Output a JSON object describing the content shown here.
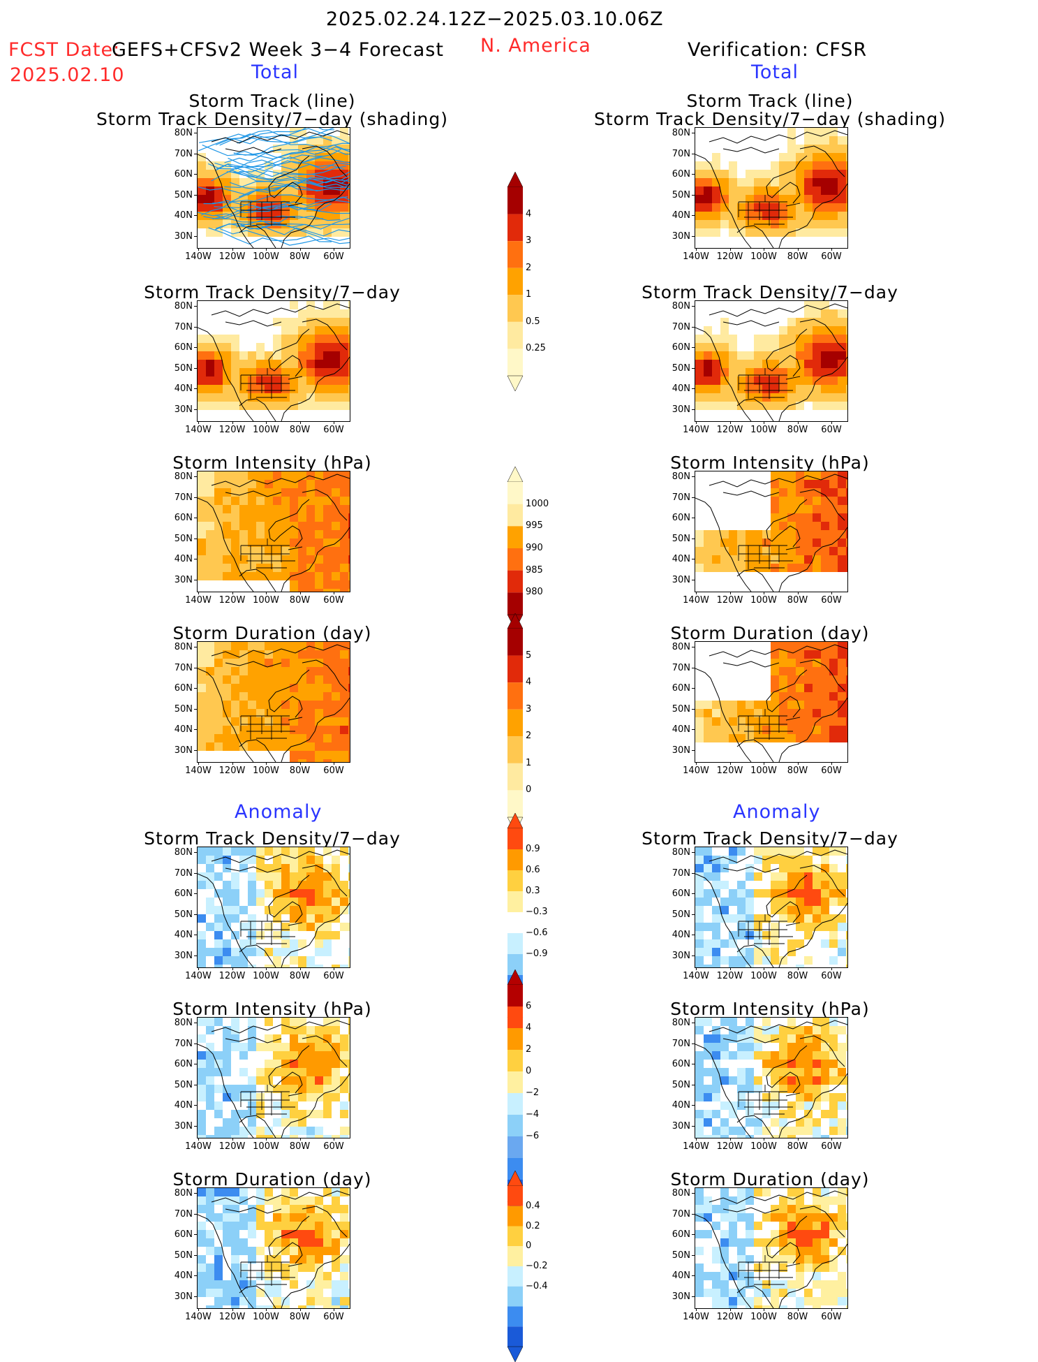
{
  "header": {
    "date_range": "2025.02.24.12Z−2025.03.10.06Z",
    "fcst_label": "FCST Date:",
    "fcst_model": "GEFS+CFSv2 Week 3−4 Forecast",
    "fcst_date": "2025.02.10",
    "region": "N. America",
    "verification": "Verification: CFSR"
  },
  "sections": {
    "total_left": "Total",
    "total_right": "Total",
    "anomaly_left": "Anomaly",
    "anomaly_right": "Anomaly"
  },
  "panel_titles": {
    "storm_track_line": "Storm Track (line)",
    "storm_track_shading": "Storm Track Density/7−day (shading)",
    "density": "Storm Track Density/7−day",
    "intensity": "Storm Intensity (hPa)",
    "duration": "Storm Duration (day)"
  },
  "axes": {
    "lat_ticks": [
      "80N",
      "70N",
      "60N",
      "50N",
      "40N",
      "30N"
    ],
    "lon_ticks": [
      "140W",
      "120W",
      "100W",
      "80W",
      "60W"
    ]
  },
  "colorbars": {
    "density_total": {
      "labels": [
        "4",
        "3",
        "2",
        "1",
        "0.5",
        "0.25"
      ],
      "colors": [
        "#a50000",
        "#e12a0a",
        "#ff7010",
        "#ffa200",
        "#ffc850",
        "#ffeaa0",
        "#fff8c8"
      ]
    },
    "intensity_total": {
      "labels": [
        "1000",
        "995",
        "990",
        "985",
        "980"
      ],
      "colors": [
        "#fff8c8",
        "#ffeaa0",
        "#ffa200",
        "#ff7010",
        "#e12a0a",
        "#a50000"
      ]
    },
    "duration_total": {
      "labels": [
        "5",
        "4",
        "3",
        "2",
        "1",
        "0"
      ],
      "colors": [
        "#a50000",
        "#e12a0a",
        "#ff7010",
        "#ffa200",
        "#ffc850",
        "#ffeaa0",
        "#fff8c8"
      ]
    },
    "density_anom": {
      "labels": [
        "0.9",
        "0.6",
        "0.3",
        "−0.3",
        "−0.6",
        "−0.9"
      ],
      "colors": [
        "#ff4a10",
        "#ff9a00",
        "#ffd040",
        "#fff0a0",
        "#ffffff",
        "#c8f0ff",
        "#8cd0f8",
        "#3c8cf0",
        "#1a5ad8"
      ]
    },
    "intensity_anom": {
      "labels": [
        "6",
        "4",
        "2",
        "0",
        "−2",
        "−4",
        "−6"
      ],
      "colors": [
        "#b40000",
        "#ff4a10",
        "#ff9a00",
        "#ffd040",
        "#fff0a0",
        "#c8f0ff",
        "#8cd0f8",
        "#6aa8f0",
        "#3c8cf0",
        "#1a5ad8"
      ]
    },
    "duration_anom": {
      "labels": [
        "0.4",
        "0.2",
        "0",
        "−0.2",
        "−0.4"
      ],
      "colors": [
        "#ff4a10",
        "#ff9a00",
        "#ffd040",
        "#fff0a0",
        "#c8f0ff",
        "#8cd0f8",
        "#3c8cf0",
        "#1a5ad8"
      ]
    }
  },
  "palette": {
    "warm": [
      "#fff8c8",
      "#ffeaa0",
      "#ffc850",
      "#ffa200",
      "#ff7010",
      "#e12a0a",
      "#a50000"
    ],
    "cool": [
      "#c8f0ff",
      "#8cd0f8",
      "#3c8cf0",
      "#1a5ad8"
    ],
    "track_lines": "#1e96e6"
  }
}
